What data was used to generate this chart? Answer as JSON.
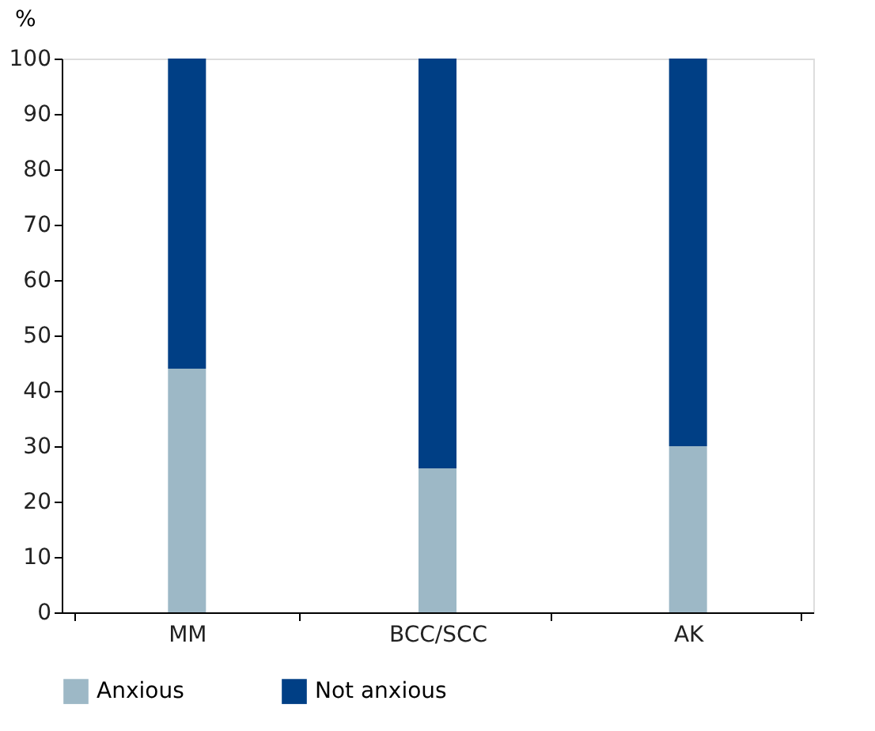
{
  "chart_data": {
    "type": "bar",
    "stacked": true,
    "ylabel": "%",
    "categories": [
      "MM",
      "BCC/SCC",
      "AK"
    ],
    "series": [
      {
        "name": "Anxious",
        "color": "#9db8c6",
        "values": [
          44,
          26,
          30
        ]
      },
      {
        "name": "Not anxious",
        "color": "#003f85",
        "values": [
          56,
          74,
          70
        ]
      }
    ],
    "ylim": [
      0,
      100
    ],
    "yticks": [
      0,
      10,
      20,
      30,
      40,
      50,
      60,
      70,
      80,
      90,
      100
    ],
    "grid": false,
    "legend": "bottom left"
  }
}
